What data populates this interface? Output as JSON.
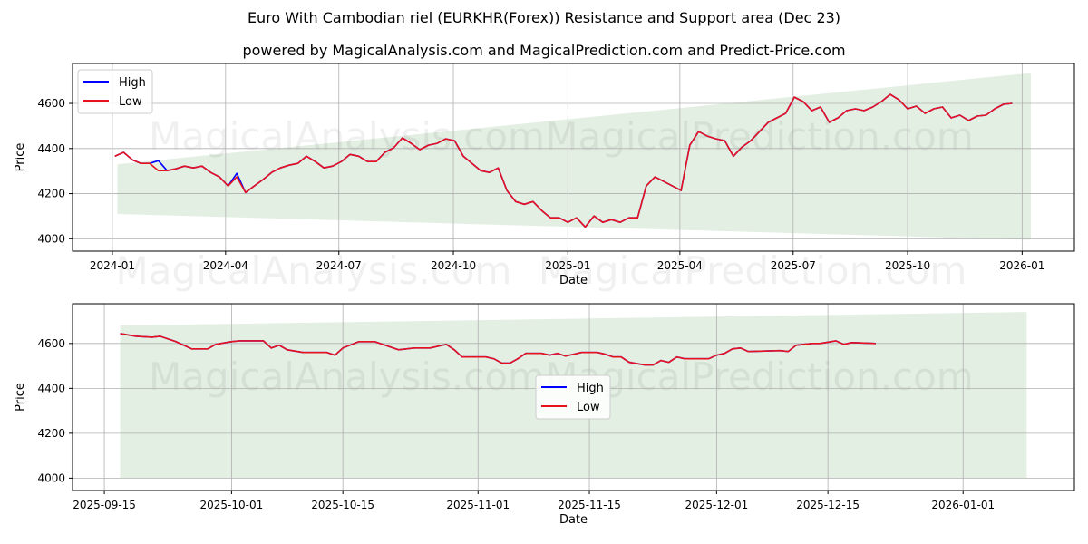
{
  "title": "Euro With Cambodian riel (EURKHR(Forex)) Resistance and Support area (Dec 23)",
  "subtitle": "powered by MagicalAnalysis.com and MagicalPrediction.com and Predict-Price.com",
  "watermarks": [
    "MagicalAnalysis.com",
    "MagicalPrediction.com"
  ],
  "colors": {
    "high": "#0000ff",
    "low": "#e8111e",
    "band": "#e3efe3",
    "grid": "#b0b0b0"
  },
  "chart_data": [
    {
      "type": "line",
      "xlabel": "Date",
      "ylabel": "Price",
      "xlim": [
        "2023-11-30",
        "2026-02-12"
      ],
      "ylim": [
        3945,
        4777
      ],
      "grid": true,
      "legend": {
        "position": "top-left",
        "entries": [
          "High",
          "Low"
        ]
      },
      "xticks": [
        "2024-01",
        "2024-04",
        "2024-07",
        "2024-10",
        "2025-01",
        "2025-04",
        "2025-07",
        "2025-10",
        "2026-01"
      ],
      "yticks": [
        4000,
        4200,
        4400,
        4600
      ],
      "series_start": "2024-01-03",
      "series_step_days": 7,
      "series": [
        {
          "name": "High",
          "values": [
            4366,
            4383,
            4350,
            4334,
            4334,
            4346,
            4302,
            4310,
            4322,
            4314,
            4322,
            4294,
            4274,
            4234,
            4290,
            4205,
            4234,
            4262,
            4294,
            4314,
            4326,
            4334,
            4366,
            4342,
            4314,
            4322,
            4342,
            4374,
            4366,
            4342,
            4342,
            4383,
            4403,
            4447,
            4423,
            4395,
            4415,
            4423,
            4443,
            4435,
            4366,
            4334,
            4302,
            4294,
            4314,
            4214,
            4165,
            4153,
            4165,
            4125,
            4093,
            4093,
            4073,
            4093,
            4052,
            4101,
            4073,
            4085,
            4073,
            4093,
            4093,
            4234,
            4274,
            4254,
            4234,
            4214,
            4415,
            4475,
            4455,
            4443,
            4435,
            4366,
            4407,
            4435,
            4475,
            4516,
            4536,
            4556,
            4628,
            4608,
            4568,
            4584,
            4516,
            4536,
            4568,
            4576,
            4568,
            4584,
            4608,
            4640,
            4616,
            4576,
            4588,
            4556,
            4576,
            4584,
            4536,
            4548,
            4524,
            4544,
            4548,
            4576,
            4596,
            4600
          ]
        },
        {
          "name": "Low",
          "values": [
            4366,
            4383,
            4350,
            4334,
            4334,
            4302,
            4302,
            4310,
            4322,
            4314,
            4322,
            4294,
            4274,
            4234,
            4274,
            4205,
            4234,
            4262,
            4294,
            4314,
            4326,
            4334,
            4366,
            4342,
            4314,
            4322,
            4342,
            4374,
            4366,
            4342,
            4342,
            4383,
            4403,
            4447,
            4423,
            4395,
            4415,
            4423,
            4443,
            4435,
            4366,
            4334,
            4302,
            4294,
            4314,
            4214,
            4165,
            4153,
            4165,
            4125,
            4093,
            4093,
            4073,
            4093,
            4052,
            4101,
            4073,
            4085,
            4073,
            4093,
            4093,
            4234,
            4274,
            4254,
            4234,
            4214,
            4415,
            4475,
            4455,
            4443,
            4435,
            4366,
            4407,
            4435,
            4475,
            4516,
            4536,
            4556,
            4628,
            4608,
            4568,
            4584,
            4516,
            4536,
            4568,
            4576,
            4568,
            4584,
            4608,
            4640,
            4616,
            4576,
            4588,
            4556,
            4576,
            4584,
            4536,
            4548,
            4524,
            4544,
            4548,
            4576,
            4596,
            4600
          ]
        }
      ],
      "band": {
        "start": "2024-01-05",
        "end": "2026-01-08",
        "upper": [
          4330,
          4735
        ],
        "lower": [
          4110,
          3995
        ]
      }
    },
    {
      "type": "line",
      "xlabel": "Date",
      "ylabel": "Price",
      "xlim": [
        "2025-09-11",
        "2026-01-15"
      ],
      "ylim": [
        3945,
        4777
      ],
      "grid": true,
      "legend": {
        "position": "center",
        "entries": [
          "High",
          "Low"
        ]
      },
      "xticks": [
        "2025-09-15",
        "2025-10-01",
        "2025-10-15",
        "2025-11-01",
        "2025-11-15",
        "2025-12-01",
        "2025-12-15",
        "2026-01-01"
      ],
      "yticks": [
        4000,
        4200,
        4400,
        4600
      ],
      "points": [
        [
          "2025-09-17",
          4644
        ],
        [
          "2025-09-19",
          4632
        ],
        [
          "2025-09-21",
          4628
        ],
        [
          "2025-09-22",
          4632
        ],
        [
          "2025-09-24",
          4608
        ],
        [
          "2025-09-26",
          4576
        ],
        [
          "2025-09-28",
          4576
        ],
        [
          "2025-09-29",
          4596
        ],
        [
          "2025-10-01",
          4608
        ],
        [
          "2025-10-02",
          4612
        ],
        [
          "2025-10-05",
          4612
        ],
        [
          "2025-10-06",
          4580
        ],
        [
          "2025-10-07",
          4592
        ],
        [
          "2025-10-08",
          4572
        ],
        [
          "2025-10-10",
          4560
        ],
        [
          "2025-10-13",
          4560
        ],
        [
          "2025-10-14",
          4548
        ],
        [
          "2025-10-15",
          4580
        ],
        [
          "2025-10-17",
          4608
        ],
        [
          "2025-10-19",
          4608
        ],
        [
          "2025-10-20",
          4596
        ],
        [
          "2025-10-22",
          4572
        ],
        [
          "2025-10-24",
          4580
        ],
        [
          "2025-10-26",
          4580
        ],
        [
          "2025-10-28",
          4596
        ],
        [
          "2025-10-29",
          4572
        ],
        [
          "2025-10-30",
          4540
        ],
        [
          "2025-11-02",
          4540
        ],
        [
          "2025-11-03",
          4532
        ],
        [
          "2025-11-04",
          4512
        ],
        [
          "2025-11-05",
          4512
        ],
        [
          "2025-11-06",
          4532
        ],
        [
          "2025-11-07",
          4556
        ],
        [
          "2025-11-09",
          4556
        ],
        [
          "2025-11-10",
          4548
        ],
        [
          "2025-11-11",
          4556
        ],
        [
          "2025-11-12",
          4544
        ],
        [
          "2025-11-14",
          4560
        ],
        [
          "2025-11-16",
          4560
        ],
        [
          "2025-11-17",
          4552
        ],
        [
          "2025-11-18",
          4540
        ],
        [
          "2025-11-19",
          4540
        ],
        [
          "2025-11-20",
          4516
        ],
        [
          "2025-11-22",
          4504
        ],
        [
          "2025-11-23",
          4504
        ],
        [
          "2025-11-24",
          4524
        ],
        [
          "2025-11-25",
          4516
        ],
        [
          "2025-11-26",
          4540
        ],
        [
          "2025-11-27",
          4532
        ],
        [
          "2025-11-30",
          4532
        ],
        [
          "2025-12-01",
          4548
        ],
        [
          "2025-12-02",
          4556
        ],
        [
          "2025-12-03",
          4576
        ],
        [
          "2025-12-04",
          4580
        ],
        [
          "2025-12-05",
          4564
        ],
        [
          "2025-12-09",
          4568
        ],
        [
          "2025-12-10",
          4564
        ],
        [
          "2025-12-11",
          4592
        ],
        [
          "2025-12-13",
          4600
        ],
        [
          "2025-12-14",
          4600
        ],
        [
          "2025-12-16",
          4612
        ],
        [
          "2025-12-17",
          4596
        ],
        [
          "2025-12-18",
          4604
        ],
        [
          "2025-12-21",
          4600
        ]
      ],
      "band": {
        "start": "2025-09-17",
        "end": "2026-01-09",
        "upper": [
          4680,
          4740
        ],
        "lower": [
          4000,
          4000
        ]
      }
    }
  ]
}
